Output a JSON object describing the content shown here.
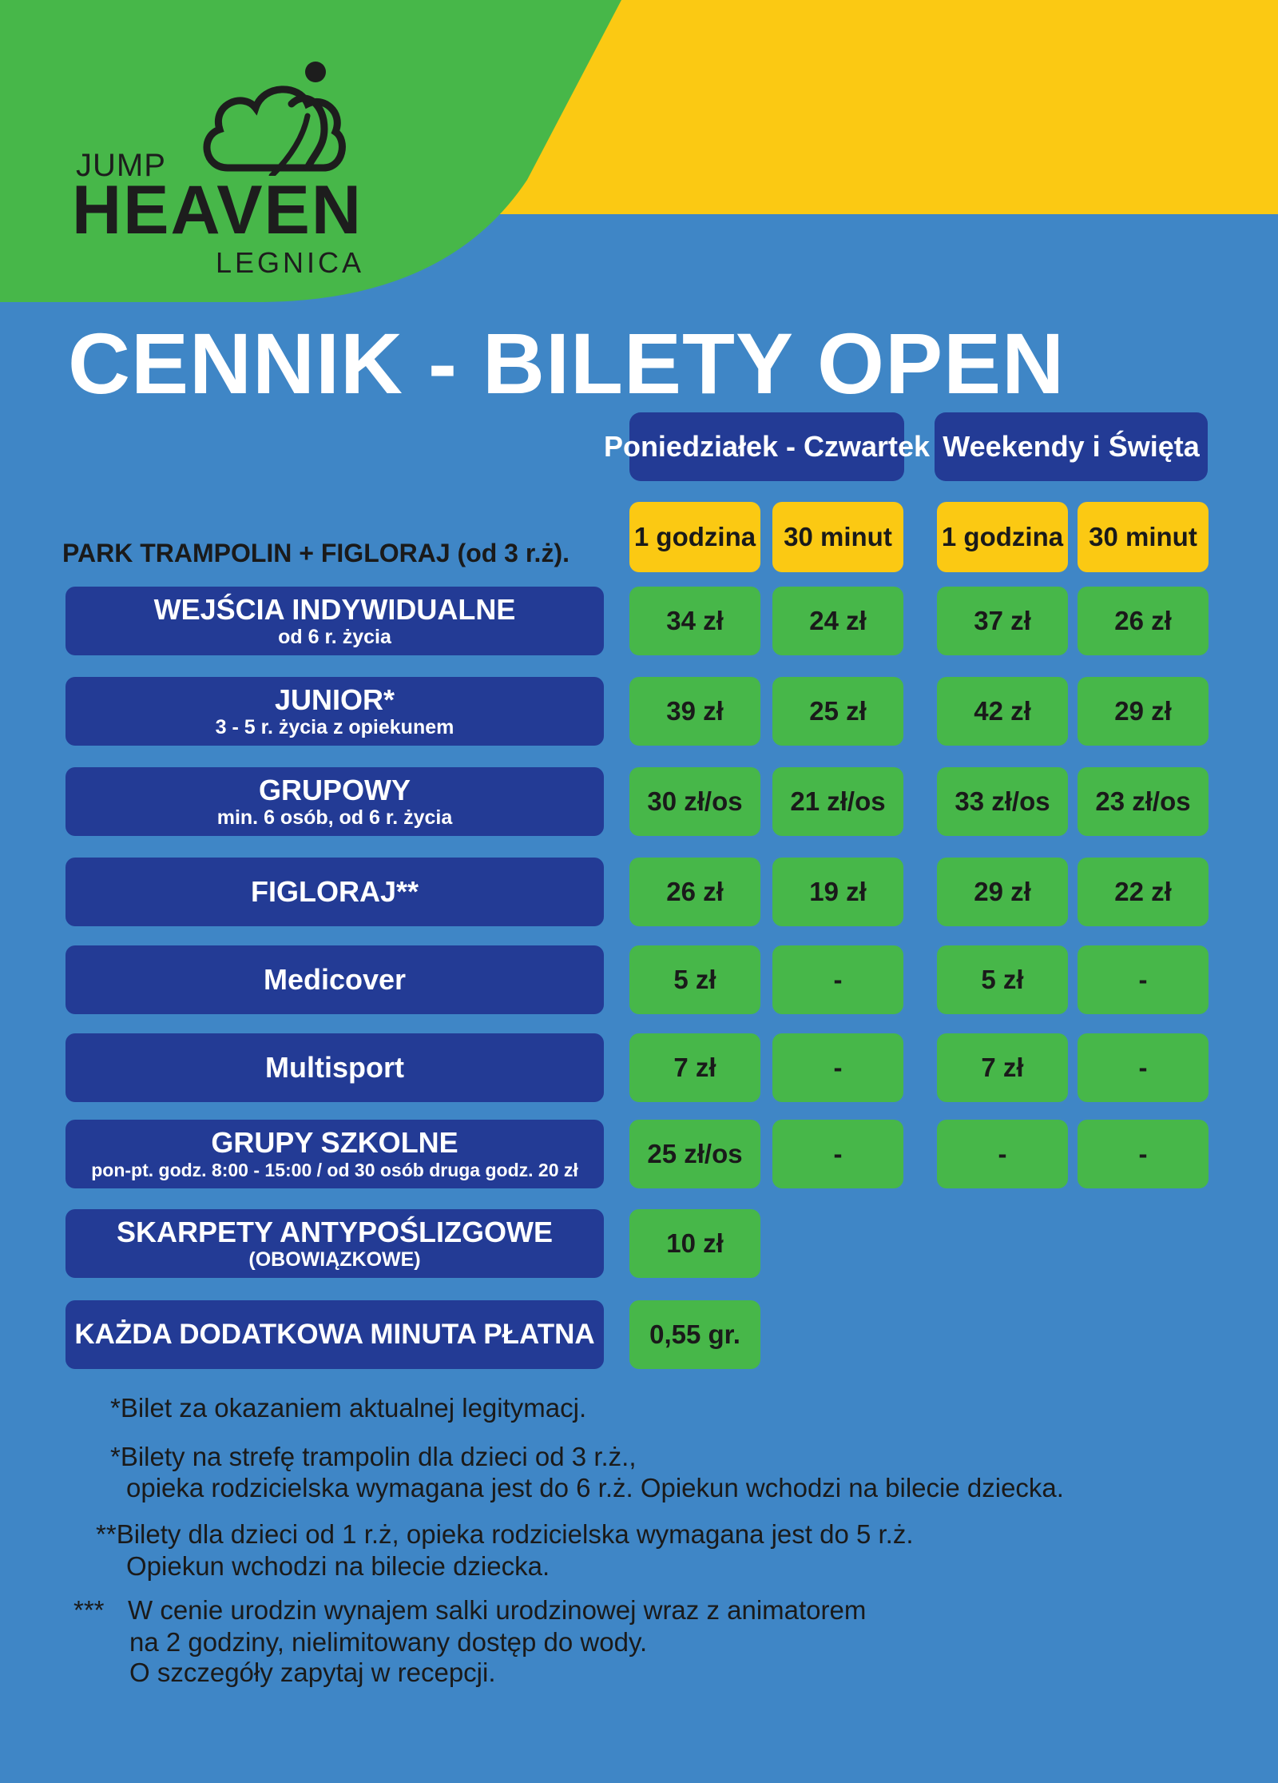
{
  "brand": {
    "logo_jump": "JUMP",
    "logo_heaven": "HEAVEN",
    "logo_city": "LEGNICA",
    "colors": {
      "green": "#47b749",
      "yellow": "#fbc913",
      "blue_bg": "#3f86c6",
      "navy": "#233b95"
    }
  },
  "title": "CENNIK - BILETY OPEN",
  "columns": {
    "group1": "Poniedziałek - Czwartek",
    "group2": "Weekendy i Święta",
    "sub": [
      "1 godzina",
      "30 minut",
      "1 godzina",
      "30 minut"
    ]
  },
  "section_label": "PARK TRAMPOLIN + FIGLORAJ  (od 3 r.ż).",
  "rows": [
    {
      "label": "WEJŚCIA INDYWIDUALNE",
      "sub": "od 6 r. życia",
      "values": [
        "34 zł",
        "24 zł",
        "37 zł",
        "26 zł"
      ]
    },
    {
      "label": "JUNIOR*",
      "sub": "3 - 5 r. życia z opiekunem",
      "values": [
        "39 zł",
        "25 zł",
        "42 zł",
        "29 zł"
      ]
    },
    {
      "label": "GRUPOWY",
      "sub": "min. 6 osób, od 6 r. życia",
      "values": [
        "30 zł/os",
        "21 zł/os",
        "33 zł/os",
        "23 zł/os"
      ]
    },
    {
      "label": "FIGLORAJ**",
      "sub": "",
      "values": [
        "26 zł",
        "19 zł",
        "29 zł",
        "22 zł"
      ]
    },
    {
      "label": "Medicover",
      "sub": "",
      "values": [
        "5 zł",
        "-",
        "5 zł",
        "-"
      ]
    },
    {
      "label": "Multisport",
      "sub": "",
      "values": [
        "7 zł",
        "-",
        "7 zł",
        "-"
      ]
    },
    {
      "label": "GRUPY SZKOLNE",
      "sub": "pon-pt. godz. 8:00 - 15:00 / od 30 osób druga godz. 20 zł",
      "values": [
        "25 zł/os",
        "-",
        "-",
        "-"
      ]
    },
    {
      "label": "SKARPETY ANTYPOŚLIZGOWE",
      "sub": "(OBOWIĄZKOWE)",
      "values": [
        "10 zł"
      ]
    },
    {
      "label": "KAŻDA DODATKOWA MINUTA PŁATNA",
      "sub": "",
      "values": [
        "0,55 gr."
      ]
    }
  ],
  "notes": {
    "n1_star": "*",
    "n1": "Bilet za okazaniem aktualnej legitymacj.",
    "n2_star": "*",
    "n2a": "Bilety na strefę trampolin dla dzieci od 3 r.ż.,",
    "n2b": "opieka rodzicielska wymagana jest do 6 r.ż. Opiekun wchodzi na bilecie dziecka.",
    "n3_star": "**",
    "n3a": "Bilety dla dzieci od 1 r.ż, opieka rodzicielska wymagana jest do 5 r.ż.",
    "n3b": "Opiekun wchodzi na bilecie dziecka.",
    "n4_star": "***",
    "n4a": "W cenie urodzin wynajem salki urodzinowej wraz z animatorem",
    "n4b": "na 2 godziny, nielimitowany dostęp do wody.",
    "n4c": "O szczegóły zapytaj w recepcji."
  }
}
